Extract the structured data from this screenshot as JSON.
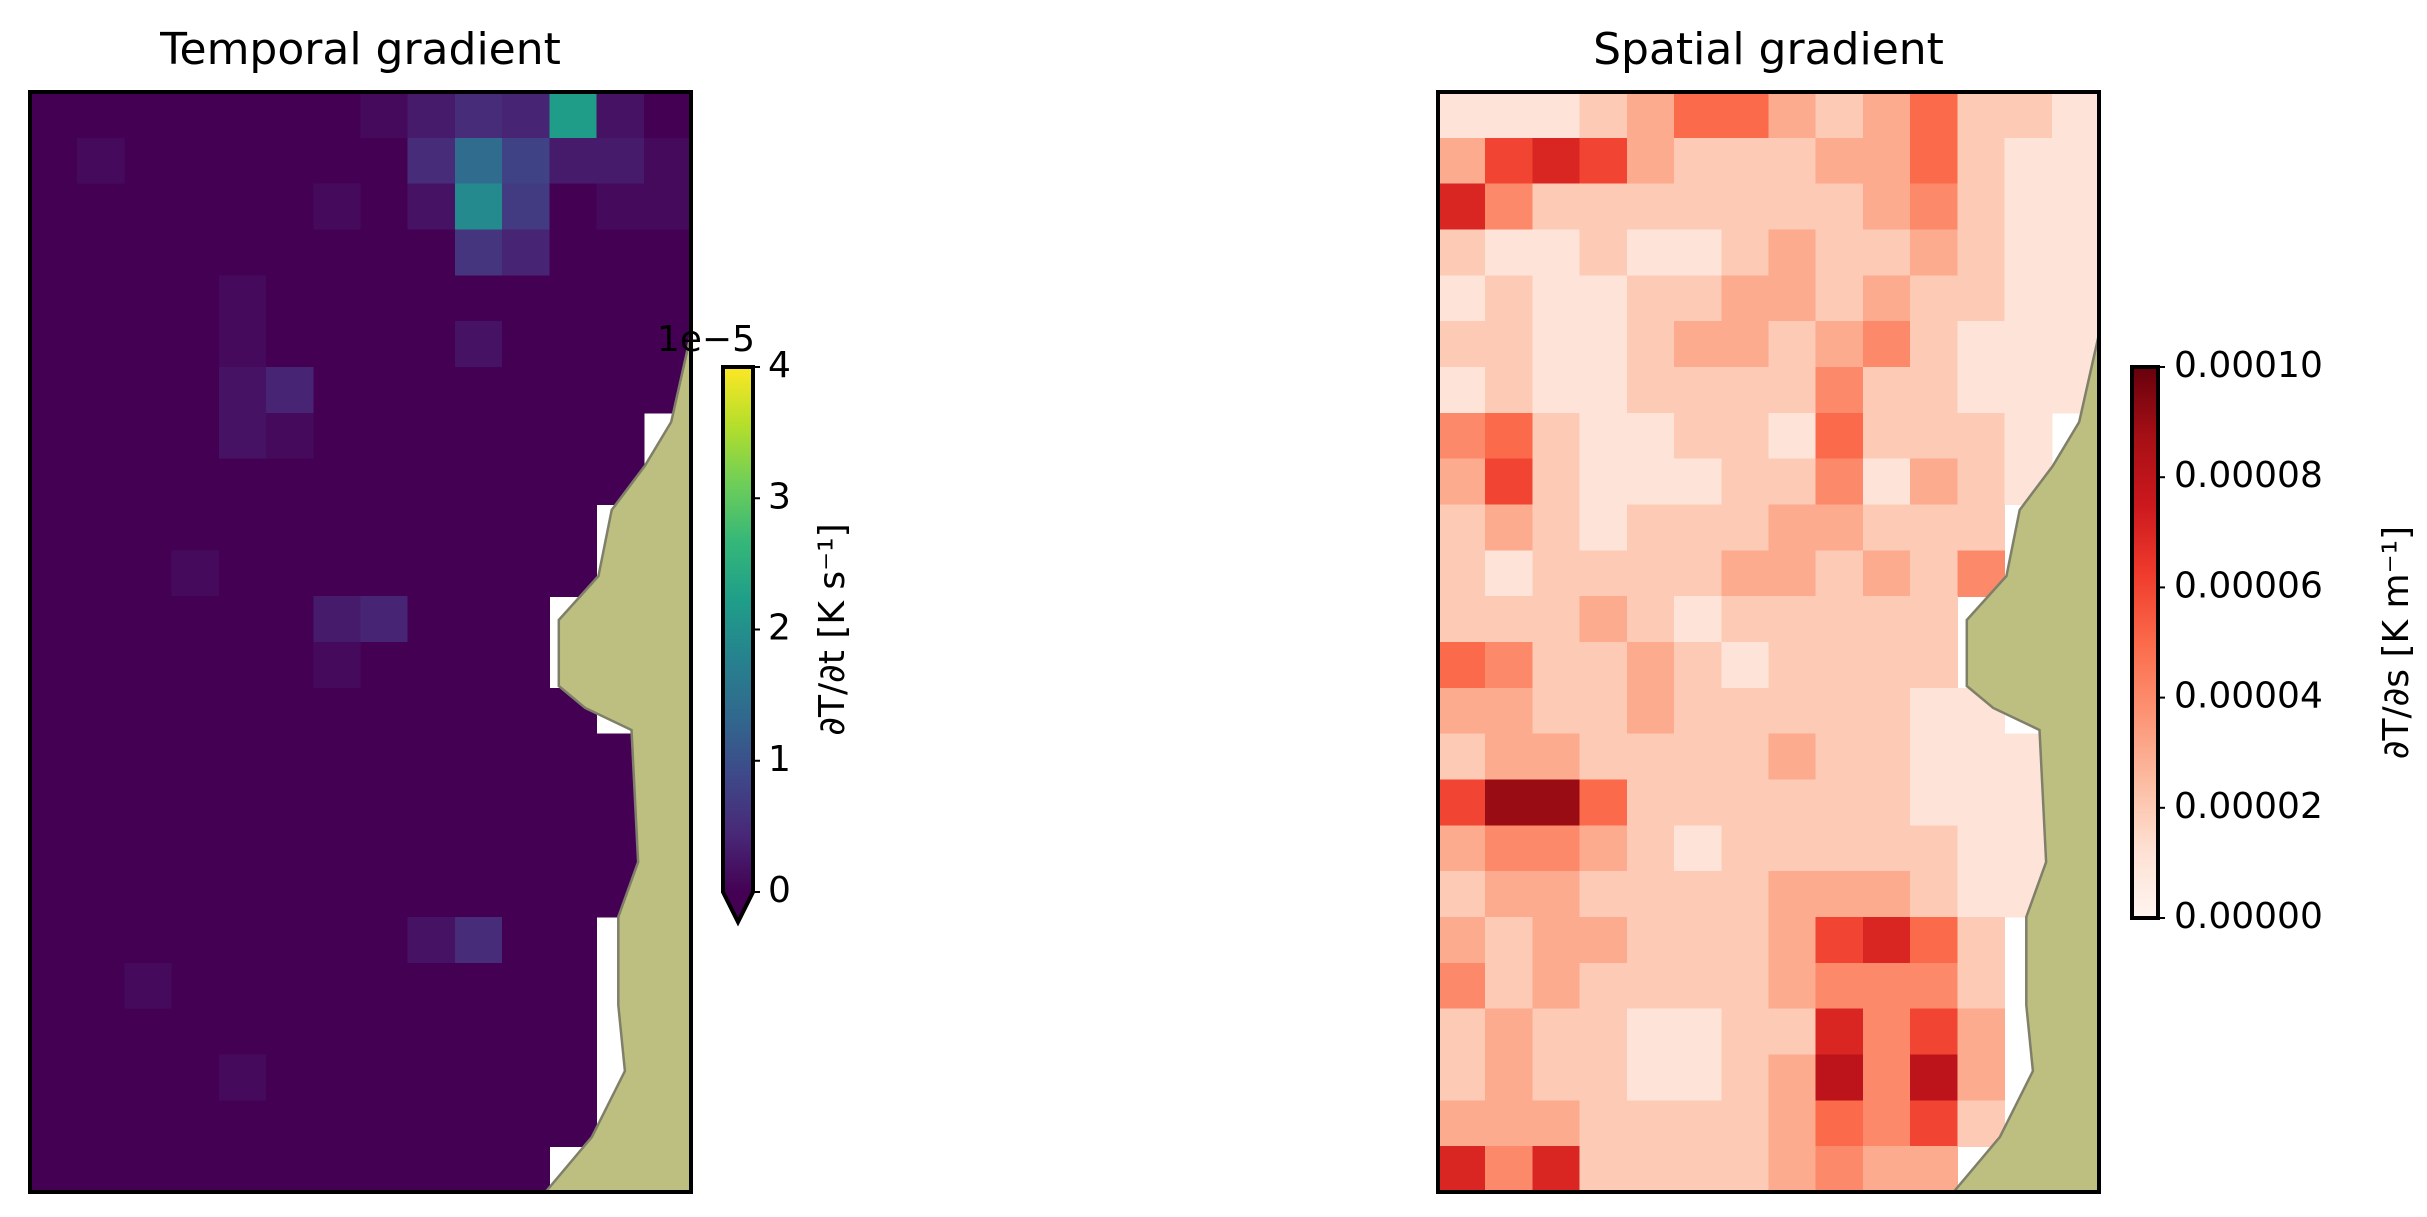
{
  "chart_data": [
    {
      "type": "heatmap",
      "title": "Temporal gradient",
      "colormap": "viridis",
      "extend": "min",
      "zlim": [
        0,
        4
      ],
      "zticks": [
        0,
        1,
        2,
        3,
        4
      ],
      "offset_text": "1e−5",
      "colorbar_label": "∂T/∂t [K s⁻¹]",
      "values": [
        [
          0,
          0,
          0,
          0,
          0,
          0,
          0,
          0.1,
          0.3,
          0.5,
          0.4,
          2.2,
          0.2,
          0
        ],
        [
          0,
          0.1,
          0,
          0,
          0,
          0,
          0,
          0,
          0.5,
          1.4,
          0.8,
          0.3,
          0.3,
          0.1
        ],
        [
          0,
          0,
          0,
          0,
          0,
          0,
          0.1,
          0,
          0.2,
          1.9,
          0.7,
          0,
          0.1,
          0.1
        ],
        [
          0,
          0,
          0,
          0,
          0,
          0,
          0,
          0,
          0,
          0.6,
          0.4,
          0,
          0,
          0
        ],
        [
          0,
          0,
          0,
          0,
          0.1,
          0,
          0,
          0,
          0,
          0,
          0,
          0,
          0,
          0
        ],
        [
          0,
          0,
          0,
          0,
          0.1,
          0,
          0,
          0,
          0,
          0.2,
          0,
          0,
          0,
          0
        ],
        [
          0,
          0,
          0,
          0,
          0.2,
          0.4,
          0,
          0,
          0,
          0,
          0,
          0,
          0,
          0
        ],
        [
          0,
          0,
          0,
          0,
          0.2,
          0.1,
          0,
          0,
          0,
          0,
          0,
          0,
          0,
          null
        ],
        [
          0,
          0,
          0,
          0,
          0,
          0,
          0,
          0,
          0,
          0,
          0,
          0,
          0,
          null
        ],
        [
          0,
          0,
          0,
          0,
          0,
          0,
          0,
          0,
          0,
          0,
          0,
          0,
          null,
          null
        ],
        [
          0,
          0,
          0,
          0.1,
          0,
          0,
          0,
          0,
          0,
          0,
          0,
          0,
          null,
          null
        ],
        [
          0,
          0,
          0,
          0,
          0,
          0,
          0.3,
          0.4,
          0,
          0,
          0,
          null,
          null,
          null
        ],
        [
          0,
          0,
          0,
          0,
          0,
          0,
          0.1,
          0,
          0,
          0,
          0,
          null,
          null,
          null
        ],
        [
          0,
          0,
          0,
          0,
          0,
          0,
          0,
          0,
          0,
          0,
          0,
          0,
          null,
          null
        ],
        [
          0,
          0,
          0,
          0,
          0,
          0,
          0,
          0,
          0,
          0,
          0,
          0,
          0,
          null
        ],
        [
          0,
          0,
          0,
          0,
          0,
          0,
          0,
          0,
          0,
          0,
          0,
          0,
          0,
          null
        ],
        [
          0,
          0,
          0,
          0,
          0,
          0,
          0,
          0,
          0,
          0,
          0,
          0,
          0,
          null
        ],
        [
          0,
          0,
          0,
          0,
          0,
          0,
          0,
          0,
          0,
          0,
          0,
          0,
          0,
          null
        ],
        [
          0,
          0,
          0,
          0,
          0,
          0,
          0,
          0,
          0.2,
          0.5,
          0,
          0,
          null,
          null
        ],
        [
          0,
          0,
          0.1,
          0,
          0,
          0,
          0,
          0,
          0,
          0,
          0,
          0,
          null,
          null
        ],
        [
          0,
          0,
          0,
          0,
          0,
          0,
          0,
          0,
          0,
          0,
          0,
          0,
          null,
          null
        ],
        [
          0,
          0,
          0,
          0,
          0.1,
          0,
          0,
          0,
          0,
          0,
          0,
          0,
          null,
          null
        ],
        [
          0,
          0,
          0,
          0,
          0,
          0,
          0,
          0,
          0,
          0,
          0,
          0,
          null,
          null
        ],
        [
          0,
          0,
          0,
          0,
          0,
          0,
          0,
          0,
          0,
          0,
          0,
          null,
          null,
          null
        ]
      ]
    },
    {
      "type": "heatmap",
      "title": "Spatial gradient",
      "colormap": "Reds",
      "zlim": [
        0,
        0.0001
      ],
      "zticks": [
        {
          "value": 0,
          "label": "0.00000"
        },
        {
          "value": 2e-05,
          "label": "0.00002"
        },
        {
          "value": 4e-05,
          "label": "0.00004"
        },
        {
          "value": 6e-05,
          "label": "0.00006"
        },
        {
          "value": 8e-05,
          "label": "0.00008"
        },
        {
          "value": 0.0001,
          "label": "0.00010"
        }
      ],
      "colorbar_label": "∂T/∂s [K m⁻¹]",
      "values": [
        [
          1e-05,
          1e-05,
          1e-05,
          2e-05,
          3e-05,
          5e-05,
          5e-05,
          3e-05,
          2e-05,
          3e-05,
          5e-05,
          2e-05,
          2e-05,
          1e-05
        ],
        [
          3e-05,
          6e-05,
          7e-05,
          6e-05,
          3e-05,
          2e-05,
          2e-05,
          2e-05,
          3e-05,
          3e-05,
          5e-05,
          2e-05,
          1e-05,
          1e-05
        ],
        [
          7e-05,
          4e-05,
          2e-05,
          2e-05,
          2e-05,
          2e-05,
          2e-05,
          2e-05,
          2e-05,
          3e-05,
          4e-05,
          2e-05,
          1e-05,
          1e-05
        ],
        [
          2e-05,
          1e-05,
          1e-05,
          2e-05,
          1e-05,
          1e-05,
          2e-05,
          3e-05,
          2e-05,
          2e-05,
          3e-05,
          2e-05,
          1e-05,
          1e-05
        ],
        [
          1e-05,
          2e-05,
          1e-05,
          1e-05,
          2e-05,
          2e-05,
          3e-05,
          3e-05,
          2e-05,
          3e-05,
          2e-05,
          2e-05,
          1e-05,
          1e-05
        ],
        [
          2e-05,
          2e-05,
          1e-05,
          1e-05,
          2e-05,
          3e-05,
          3e-05,
          2e-05,
          3e-05,
          4e-05,
          2e-05,
          1e-05,
          1e-05,
          1e-05
        ],
        [
          1e-05,
          2e-05,
          1e-05,
          1e-05,
          2e-05,
          2e-05,
          2e-05,
          2e-05,
          4e-05,
          2e-05,
          2e-05,
          1e-05,
          1e-05,
          1e-05
        ],
        [
          4e-05,
          5e-05,
          2e-05,
          1e-05,
          1e-05,
          2e-05,
          2e-05,
          1e-05,
          5e-05,
          2e-05,
          2e-05,
          2e-05,
          1e-05,
          null
        ],
        [
          3e-05,
          6e-05,
          2e-05,
          1e-05,
          1e-05,
          1e-05,
          2e-05,
          2e-05,
          4e-05,
          1e-05,
          3e-05,
          2e-05,
          1e-05,
          null
        ],
        [
          2e-05,
          3e-05,
          2e-05,
          1e-05,
          2e-05,
          2e-05,
          2e-05,
          3e-05,
          3e-05,
          2e-05,
          2e-05,
          2e-05,
          null,
          null
        ],
        [
          2e-05,
          1e-05,
          2e-05,
          2e-05,
          2e-05,
          2e-05,
          3e-05,
          3e-05,
          2e-05,
          3e-05,
          2e-05,
          4e-05,
          null,
          null
        ],
        [
          2e-05,
          2e-05,
          2e-05,
          3e-05,
          2e-05,
          1e-05,
          2e-05,
          2e-05,
          2e-05,
          2e-05,
          2e-05,
          null,
          null,
          null
        ],
        [
          5e-05,
          4e-05,
          2e-05,
          2e-05,
          3e-05,
          2e-05,
          1e-05,
          2e-05,
          2e-05,
          2e-05,
          2e-05,
          null,
          null,
          null
        ],
        [
          3e-05,
          3e-05,
          2e-05,
          2e-05,
          3e-05,
          2e-05,
          2e-05,
          2e-05,
          2e-05,
          2e-05,
          1e-05,
          1e-05,
          null,
          null
        ],
        [
          2e-05,
          3e-05,
          3e-05,
          2e-05,
          2e-05,
          2e-05,
          2e-05,
          3e-05,
          2e-05,
          2e-05,
          1e-05,
          1e-05,
          1e-05,
          null
        ],
        [
          6e-05,
          9e-05,
          9e-05,
          5e-05,
          2e-05,
          2e-05,
          2e-05,
          2e-05,
          2e-05,
          2e-05,
          1e-05,
          1e-05,
          1e-05,
          null
        ],
        [
          3e-05,
          4e-05,
          4e-05,
          3e-05,
          2e-05,
          1e-05,
          2e-05,
          2e-05,
          2e-05,
          2e-05,
          2e-05,
          1e-05,
          1e-05,
          null
        ],
        [
          2e-05,
          3e-05,
          3e-05,
          2e-05,
          2e-05,
          2e-05,
          2e-05,
          3e-05,
          3e-05,
          3e-05,
          2e-05,
          1e-05,
          1e-05,
          null
        ],
        [
          3e-05,
          2e-05,
          3e-05,
          3e-05,
          2e-05,
          2e-05,
          2e-05,
          3e-05,
          6e-05,
          7e-05,
          5e-05,
          2e-05,
          null,
          null
        ],
        [
          4e-05,
          2e-05,
          3e-05,
          2e-05,
          2e-05,
          2e-05,
          2e-05,
          3e-05,
          4e-05,
          4e-05,
          4e-05,
          2e-05,
          null,
          null
        ],
        [
          2e-05,
          3e-05,
          2e-05,
          2e-05,
          1e-05,
          1e-05,
          2e-05,
          2e-05,
          7e-05,
          4e-05,
          6e-05,
          3e-05,
          null,
          null
        ],
        [
          2e-05,
          3e-05,
          2e-05,
          2e-05,
          1e-05,
          1e-05,
          2e-05,
          3e-05,
          8e-05,
          4e-05,
          8e-05,
          3e-05,
          null,
          null
        ],
        [
          3e-05,
          3e-05,
          3e-05,
          2e-05,
          2e-05,
          2e-05,
          2e-05,
          3e-05,
          5e-05,
          4e-05,
          6e-05,
          2e-05,
          null,
          null
        ],
        [
          7e-05,
          4e-05,
          7e-05,
          2e-05,
          2e-05,
          2e-05,
          2e-05,
          3e-05,
          4e-05,
          3e-05,
          3e-05,
          null,
          null,
          null
        ]
      ]
    }
  ]
}
